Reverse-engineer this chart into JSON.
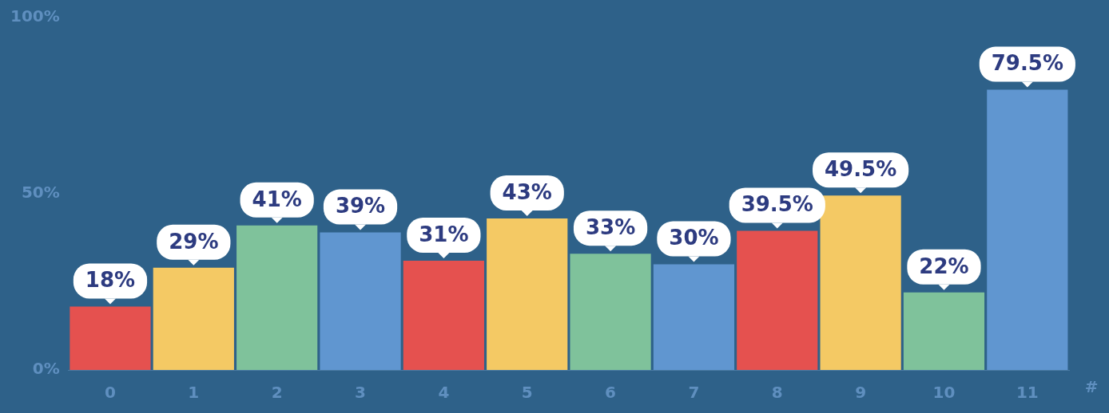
{
  "chart_data": {
    "type": "bar",
    "xlabel": "#",
    "categories": [
      "0",
      "1",
      "2",
      "3",
      "4",
      "5",
      "6",
      "7",
      "8",
      "9",
      "10",
      "11"
    ],
    "values": [
      18,
      29,
      41,
      39,
      31,
      43,
      33,
      30,
      39.5,
      49.5,
      22,
      79.5
    ],
    "value_labels": [
      "18%",
      "29%",
      "41%",
      "39%",
      "31%",
      "43%",
      "33%",
      "30%",
      "39.5%",
      "49.5%",
      "22%",
      "79.5%"
    ],
    "colors": [
      "#e5514f",
      "#f4c964",
      "#7fc29b",
      "#6096d0",
      "#e5514f",
      "#f4c964",
      "#7fc29b",
      "#6096d0",
      "#e5514f",
      "#f4c964",
      "#7fc29b",
      "#6096d0"
    ],
    "ylim": [
      0,
      100
    ],
    "yticks": [
      {
        "value": 0,
        "label": "0%"
      },
      {
        "value": 50,
        "label": "50%"
      },
      {
        "value": 100,
        "label": "100%"
      }
    ],
    "grid": false,
    "legend": false
  }
}
